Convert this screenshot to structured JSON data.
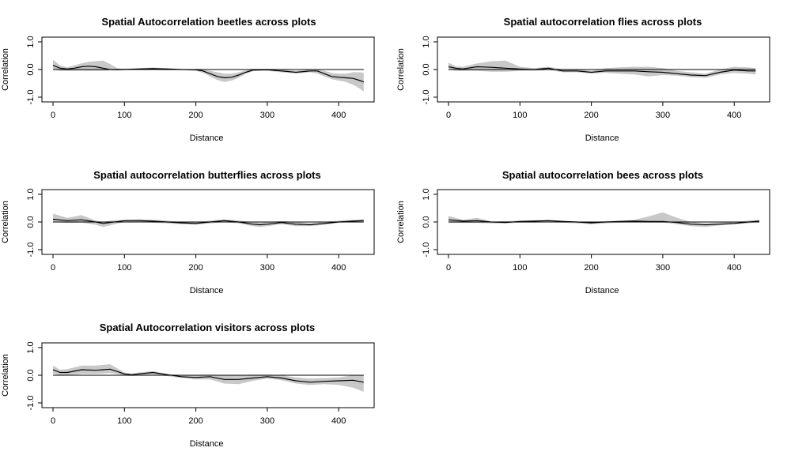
{
  "chart_data": [
    {
      "type": "line",
      "title": "Spatial Autocorrelation beetles across plots",
      "xlabel": "Distance",
      "ylabel": "Correlation",
      "xlim": [
        0,
        450
      ],
      "ylim": [
        -1,
        1
      ],
      "xticks": [
        "0",
        "100",
        "200",
        "300",
        "400"
      ],
      "yticks": [
        "-1.0",
        "0.0",
        "1.0"
      ],
      "series": [
        {
          "x": [
            0,
            10,
            20,
            30,
            40,
            50,
            60,
            70,
            80,
            90,
            100,
            120,
            140,
            160,
            180,
            200,
            210,
            220,
            230,
            240,
            250,
            260,
            270,
            280,
            300,
            320,
            340,
            360,
            370,
            380,
            390,
            400,
            410,
            420,
            430,
            435
          ],
          "y": [
            0.15,
            0.05,
            0.02,
            0.05,
            0.1,
            0.12,
            0.1,
            0.05,
            0.0,
            -0.01,
            0.0,
            0.02,
            0.03,
            0.02,
            0.0,
            -0.01,
            -0.05,
            -0.15,
            -0.25,
            -0.3,
            -0.28,
            -0.2,
            -0.1,
            -0.02,
            -0.01,
            -0.05,
            -0.1,
            -0.05,
            -0.05,
            -0.15,
            -0.25,
            -0.28,
            -0.3,
            -0.32,
            -0.4,
            -0.45
          ],
          "lower": [
            0.0,
            -0.05,
            -0.05,
            -0.05,
            -0.05,
            -0.05,
            -0.05,
            -0.05,
            -0.03,
            -0.03,
            -0.02,
            -0.01,
            -0.01,
            -0.02,
            -0.02,
            -0.05,
            -0.12,
            -0.25,
            -0.38,
            -0.45,
            -0.4,
            -0.3,
            -0.15,
            -0.06,
            -0.05,
            -0.1,
            -0.15,
            -0.1,
            -0.15,
            -0.25,
            -0.35,
            -0.4,
            -0.45,
            -0.55,
            -0.7,
            -0.8
          ],
          "upper": [
            0.35,
            0.15,
            0.08,
            0.15,
            0.22,
            0.28,
            0.3,
            0.32,
            0.2,
            0.05,
            0.03,
            0.05,
            0.07,
            0.05,
            0.02,
            0.0,
            0.0,
            -0.05,
            -0.1,
            -0.15,
            -0.15,
            -0.1,
            -0.03,
            0.0,
            0.02,
            0.0,
            -0.05,
            0.0,
            0.0,
            -0.05,
            -0.12,
            -0.15,
            -0.15,
            -0.1,
            -0.1,
            -0.12
          ]
        }
      ]
    },
    {
      "type": "line",
      "title": "Spatial autocorrelation flies across plots",
      "xlabel": "Distance",
      "ylabel": "Correlation",
      "xlim": [
        0,
        450
      ],
      "ylim": [
        -1,
        1
      ],
      "xticks": [
        "0",
        "100",
        "200",
        "300",
        "400"
      ],
      "yticks": [
        "-1.0",
        "0.0",
        "1.0"
      ],
      "series": [
        {
          "x": [
            0,
            10,
            20,
            40,
            60,
            80,
            100,
            120,
            140,
            160,
            180,
            200,
            220,
            240,
            260,
            280,
            300,
            320,
            340,
            360,
            380,
            400,
            420,
            430
          ],
          "y": [
            0.1,
            0.05,
            0.02,
            0.1,
            0.08,
            0.05,
            0.02,
            0.0,
            0.05,
            -0.05,
            -0.05,
            -0.1,
            -0.05,
            -0.05,
            -0.05,
            -0.08,
            -0.1,
            -0.15,
            -0.2,
            -0.22,
            -0.1,
            -0.02,
            -0.05,
            -0.05
          ],
          "lower": [
            0.0,
            -0.05,
            -0.05,
            -0.05,
            -0.08,
            -0.08,
            -0.05,
            -0.05,
            -0.02,
            -0.1,
            -0.1,
            -0.15,
            -0.12,
            -0.15,
            -0.18,
            -0.25,
            -0.2,
            -0.22,
            -0.28,
            -0.3,
            -0.18,
            -0.12,
            -0.15,
            -0.18
          ],
          "upper": [
            0.25,
            0.12,
            0.1,
            0.22,
            0.3,
            0.32,
            0.1,
            0.05,
            0.1,
            0.0,
            0.02,
            -0.05,
            0.05,
            0.08,
            0.1,
            0.1,
            0.05,
            -0.05,
            -0.1,
            -0.15,
            0.0,
            0.1,
            0.08,
            0.05
          ]
        }
      ]
    },
    {
      "type": "line",
      "title": "Spatial autocorrelation butterflies across plots",
      "xlabel": "Distance",
      "ylabel": "Correlation",
      "xlim": [
        0,
        450
      ],
      "ylim": [
        -1,
        1
      ],
      "xticks": [
        "0",
        "100",
        "200",
        "300",
        "400"
      ],
      "yticks": [
        "-1.0",
        "0.0",
        "1.0"
      ],
      "series": [
        {
          "x": [
            0,
            20,
            40,
            60,
            70,
            80,
            100,
            120,
            140,
            160,
            180,
            200,
            220,
            240,
            260,
            280,
            290,
            300,
            320,
            340,
            360,
            380,
            400,
            420,
            435
          ],
          "y": [
            0.1,
            0.05,
            0.08,
            0.0,
            -0.05,
            -0.02,
            0.05,
            0.05,
            0.03,
            0.0,
            -0.03,
            -0.05,
            0.0,
            0.05,
            0.0,
            -0.08,
            -0.1,
            -0.08,
            -0.02,
            -0.08,
            -0.1,
            -0.05,
            0.0,
            0.03,
            0.05
          ],
          "lower": [
            0.0,
            -0.03,
            -0.02,
            -0.1,
            -0.18,
            -0.12,
            0.0,
            0.0,
            -0.02,
            -0.05,
            -0.08,
            -0.1,
            -0.05,
            0.0,
            -0.05,
            -0.15,
            -0.18,
            -0.15,
            -0.08,
            -0.15,
            -0.15,
            -0.1,
            -0.03,
            0.0,
            0.0
          ],
          "upper": [
            0.3,
            0.15,
            0.25,
            0.05,
            0.0,
            0.05,
            0.08,
            0.1,
            0.08,
            0.05,
            0.0,
            0.0,
            0.05,
            0.1,
            0.05,
            0.0,
            -0.03,
            0.0,
            0.03,
            0.0,
            -0.05,
            0.0,
            0.05,
            0.08,
            0.1
          ]
        }
      ]
    },
    {
      "type": "line",
      "title": "Spatial autocorrelation bees across plots",
      "xlabel": "Distance",
      "ylabel": "Correlation",
      "xlim": [
        0,
        450
      ],
      "ylim": [
        -1,
        1
      ],
      "xticks": [
        "0",
        "100",
        "200",
        "300",
        "400"
      ],
      "yticks": [
        "-1.0",
        "0.0",
        "1.0"
      ],
      "series": [
        {
          "x": [
            0,
            20,
            40,
            60,
            80,
            100,
            120,
            140,
            160,
            180,
            200,
            220,
            240,
            260,
            280,
            300,
            320,
            340,
            360,
            380,
            400,
            420,
            435
          ],
          "y": [
            0.08,
            0.03,
            0.05,
            0.0,
            -0.02,
            0.02,
            0.03,
            0.05,
            0.02,
            0.0,
            -0.03,
            0.0,
            0.02,
            0.03,
            0.02,
            0.02,
            -0.02,
            -0.08,
            -0.1,
            -0.08,
            -0.05,
            0.0,
            0.03
          ],
          "lower": [
            -0.02,
            -0.03,
            -0.03,
            -0.05,
            -0.05,
            -0.02,
            -0.02,
            0.0,
            -0.02,
            -0.05,
            -0.08,
            -0.05,
            -0.02,
            0.0,
            -0.02,
            -0.02,
            -0.08,
            -0.15,
            -0.18,
            -0.12,
            -0.08,
            -0.05,
            0.0
          ],
          "upper": [
            0.22,
            0.08,
            0.15,
            0.02,
            0.03,
            0.05,
            0.06,
            0.08,
            0.05,
            0.02,
            0.0,
            0.03,
            0.05,
            0.08,
            0.2,
            0.35,
            0.15,
            0.0,
            -0.05,
            -0.02,
            0.0,
            0.05,
            0.08
          ]
        }
      ]
    },
    {
      "type": "line",
      "title": "Spatial Autocorrelation visitors across plots",
      "xlabel": "Distance",
      "ylabel": "Correlation",
      "xlim": [
        0,
        450
      ],
      "ylim": [
        -1,
        1
      ],
      "xticks": [
        "0",
        "100",
        "200",
        "300",
        "400"
      ],
      "yticks": [
        "-1.0",
        "0.0",
        "1.0"
      ],
      "series": [
        {
          "x": [
            0,
            10,
            20,
            40,
            60,
            80,
            100,
            110,
            120,
            140,
            160,
            180,
            200,
            220,
            240,
            260,
            280,
            300,
            320,
            340,
            360,
            380,
            400,
            420,
            435
          ],
          "y": [
            0.2,
            0.1,
            0.1,
            0.2,
            0.18,
            0.22,
            0.05,
            0.02,
            0.05,
            0.1,
            0.02,
            -0.05,
            -0.08,
            -0.05,
            -0.15,
            -0.15,
            -0.1,
            -0.05,
            -0.1,
            -0.2,
            -0.25,
            -0.22,
            -0.2,
            -0.18,
            -0.25
          ],
          "lower": [
            0.05,
            0.0,
            0.0,
            0.05,
            0.05,
            0.08,
            0.0,
            -0.02,
            0.0,
            0.03,
            -0.03,
            -0.1,
            -0.15,
            -0.15,
            -0.3,
            -0.32,
            -0.2,
            -0.12,
            -0.18,
            -0.3,
            -0.35,
            -0.32,
            -0.35,
            -0.45,
            -0.6
          ],
          "upper": [
            0.35,
            0.2,
            0.22,
            0.35,
            0.35,
            0.4,
            0.1,
            0.05,
            0.1,
            0.15,
            0.05,
            0.0,
            0.0,
            0.02,
            0.0,
            0.0,
            0.02,
            0.02,
            0.0,
            -0.08,
            -0.12,
            -0.1,
            -0.08,
            0.0,
            0.0
          ]
        }
      ]
    }
  ]
}
